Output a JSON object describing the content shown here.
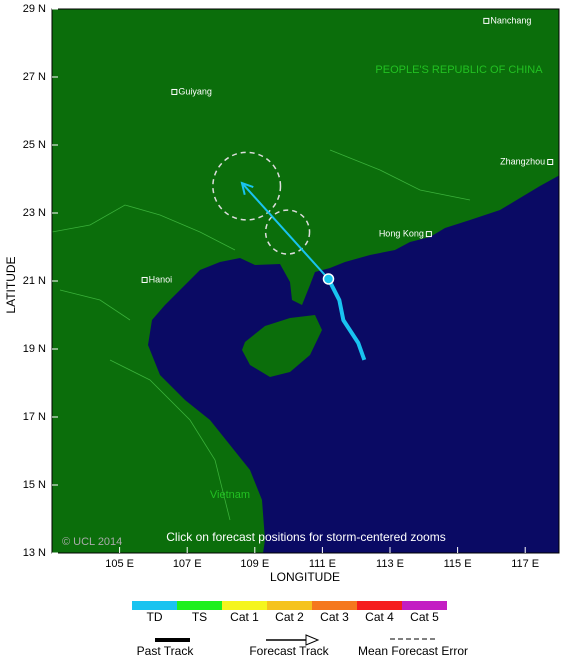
{
  "map": {
    "xlabel": "LONGITUDE",
    "ylabel": "LATITUDE",
    "xlim": [
      103,
      118
    ],
    "ylim": [
      13,
      29
    ],
    "xticks": [
      {
        "value": 105,
        "label": "105 E"
      },
      {
        "value": 107,
        "label": "107 E"
      },
      {
        "value": 109,
        "label": "109 E"
      },
      {
        "value": 111,
        "label": "111 E"
      },
      {
        "value": 113,
        "label": "113 E"
      },
      {
        "value": 115,
        "label": "115 E"
      },
      {
        "value": 117,
        "label": "117 E"
      }
    ],
    "yticks": [
      {
        "value": 13,
        "label": "13 N"
      },
      {
        "value": 15,
        "label": "15 N"
      },
      {
        "value": 17,
        "label": "17 N"
      },
      {
        "value": 19,
        "label": "19 N"
      },
      {
        "value": 21,
        "label": "21 N"
      },
      {
        "value": 23,
        "label": "23 N"
      },
      {
        "value": 25,
        "label": "25 N"
      },
      {
        "value": 27,
        "label": "27 N"
      },
      {
        "value": 29,
        "label": "29 N"
      }
    ],
    "country_labels": [
      "PEOPLE'S REPUBLIC OF CHINA",
      "Vietnam"
    ],
    "credit": "© UCL 2014",
    "hint": "Click on forecast positions for storm-centered zooms",
    "cities": [
      {
        "name": "Nanchang",
        "lon": 115.85,
        "lat": 28.65
      },
      {
        "name": "Guiyang",
        "lon": 106.62,
        "lat": 26.56
      },
      {
        "name": "Zhangzhou",
        "lon": 117.74,
        "lat": 24.5
      },
      {
        "name": "Hong Kong",
        "lon": 114.15,
        "lat": 22.38
      },
      {
        "name": "Hanoi",
        "lon": 105.74,
        "lat": 21.03
      }
    ],
    "past_track": {
      "color": "#19c3f0",
      "lon": [
        112.24,
        112.06,
        111.62,
        111.5,
        111.18
      ],
      "lat": [
        18.68,
        19.18,
        19.85,
        20.44,
        21.06
      ]
    },
    "forecast_track": {
      "color": "#19c3f0",
      "lon": [
        111.18,
        108.62
      ],
      "lat": [
        21.06,
        23.88
      ]
    },
    "error_circles": [
      {
        "lon": 109.97,
        "lat": 22.44,
        "radius": 0.65
      },
      {
        "lon": 108.76,
        "lat": 23.79,
        "radius": 1.0
      }
    ]
  },
  "legend": {
    "categories": [
      {
        "name": "TD",
        "color": "#19c3f0"
      },
      {
        "name": "TS",
        "color": "#1ef01e"
      },
      {
        "name": "Cat 1",
        "color": "#f5f51e"
      },
      {
        "name": "Cat 2",
        "color": "#f5c31e"
      },
      {
        "name": "Cat 3",
        "color": "#f5781e"
      },
      {
        "name": "Cat 4",
        "color": "#f51e1e"
      },
      {
        "name": "Cat 5",
        "color": "#c31ec3"
      }
    ],
    "lines": [
      "Past Track",
      "Forecast Track",
      "Mean Forecast Error"
    ]
  }
}
